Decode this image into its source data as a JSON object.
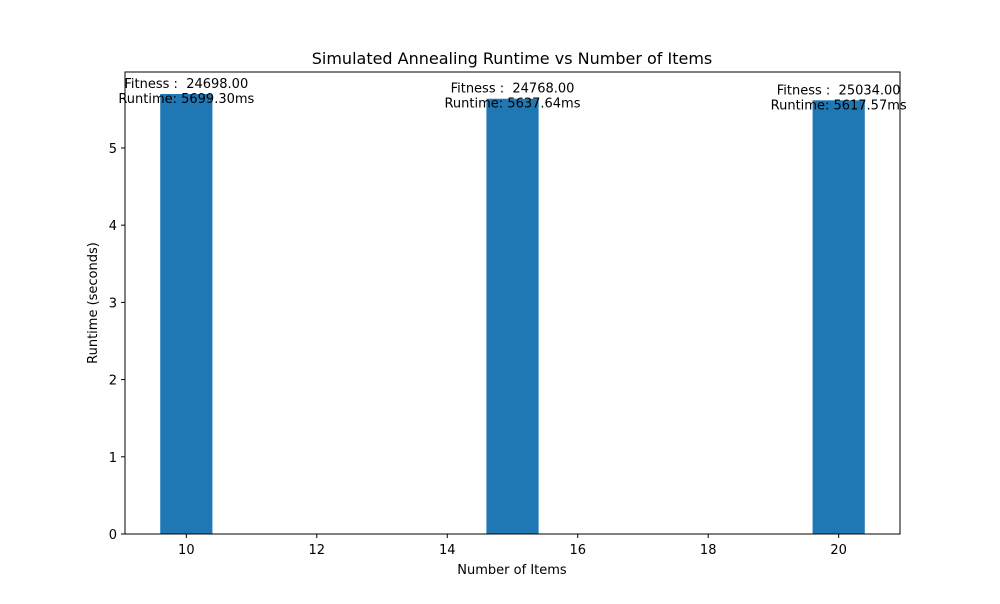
{
  "chart_data": {
    "type": "bar",
    "title": "Simulated Annealing Runtime vs Number of Items",
    "xlabel": "Number of Items",
    "ylabel": "Runtime (seconds)",
    "x": [
      10,
      15,
      20
    ],
    "values": [
      5.6993,
      5.63764,
      5.61757
    ],
    "bar_width": 0.8,
    "xlim": [
      9.06,
      20.94
    ],
    "ylim": [
      0,
      5.984
    ],
    "xticks": [
      10,
      12,
      14,
      16,
      18,
      20
    ],
    "yticks": [
      0,
      1,
      2,
      3,
      4,
      5
    ],
    "annotations": [
      {
        "fitness": "Fitness :  24698.00",
        "runtime": "Runtime: 5699.30ms"
      },
      {
        "fitness": "Fitness :  24768.00",
        "runtime": "Runtime: 5637.64ms"
      },
      {
        "fitness": "Fitness :  25034.00",
        "runtime": "Runtime: 5617.57ms"
      }
    ],
    "bar_color": "#1f77b4",
    "grid": false,
    "legend": "none"
  }
}
